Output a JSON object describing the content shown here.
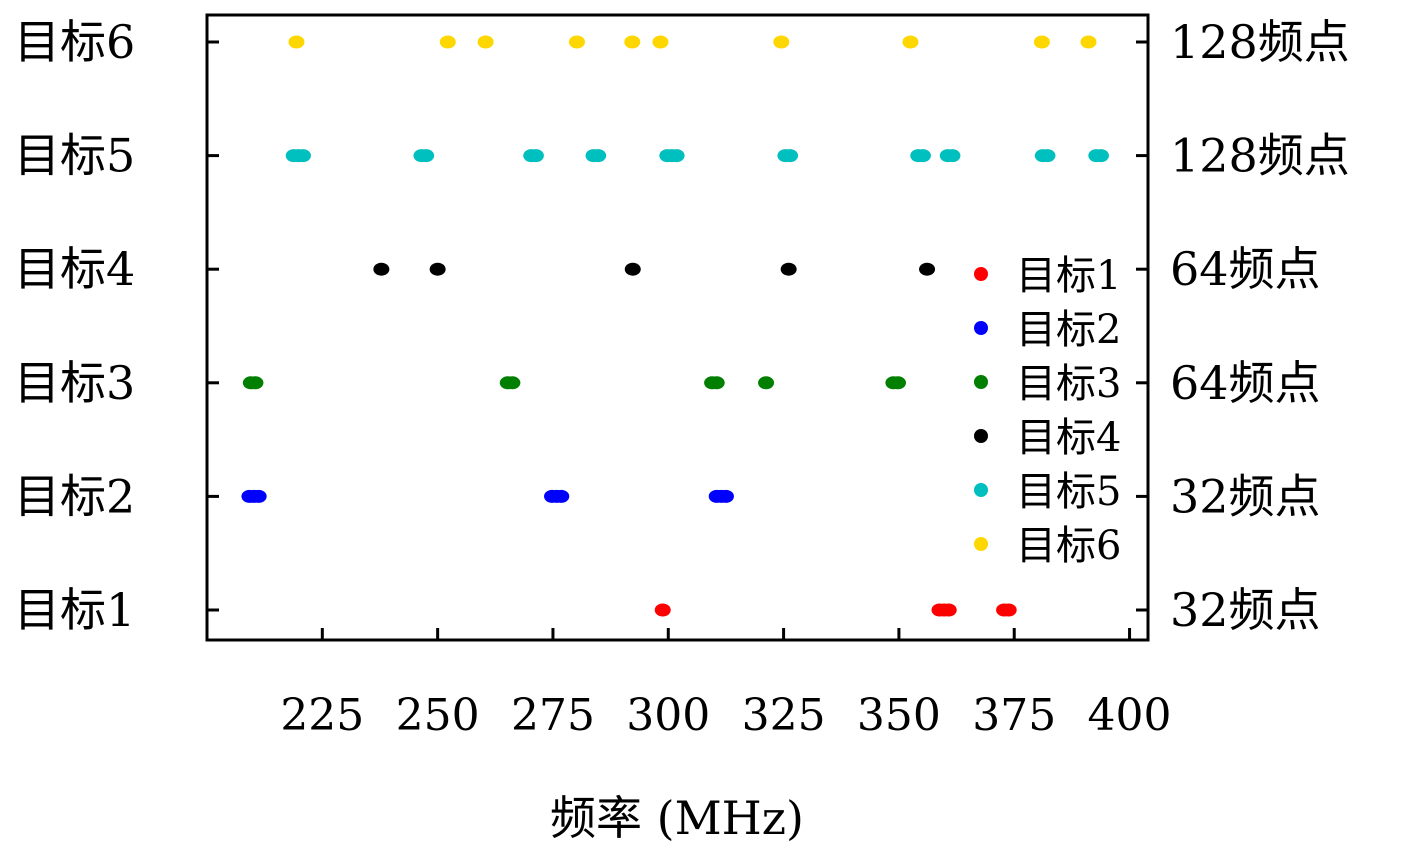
{
  "chart_data": {
    "type": "scatter",
    "xlabel": "频率 (MHz)",
    "ylabel": "",
    "xlim": [
      200,
      404
    ],
    "x_ticks": [
      "225",
      "250",
      "275",
      "300",
      "325",
      "350",
      "375",
      "400"
    ],
    "y_categories": [
      "目标1",
      "目标2",
      "目标3",
      "目标4",
      "目标5",
      "目标6"
    ],
    "right_labels": [
      "32频点",
      "32频点",
      "64频点",
      "64频点",
      "128频点",
      "128频点"
    ],
    "grid": false,
    "legend": "right-inside",
    "series": [
      {
        "name": "目标1",
        "color": "#ff0000",
        "y": 1,
        "x": [
          298.8,
          358.8,
          359.8,
          360.8,
          372.8,
          373.8
        ]
      },
      {
        "name": "目标2",
        "color": "#0000ff",
        "y": 2,
        "x": [
          209.2,
          210.2,
          211.2,
          274.8,
          275.8,
          276.8,
          310.5,
          311.5,
          312.5
        ]
      },
      {
        "name": "目标3",
        "color": "#007f00",
        "y": 3,
        "x": [
          209.5,
          210.5,
          265.2,
          266.2,
          309.5,
          310.5,
          321.2,
          348.8,
          349.8
        ]
      },
      {
        "name": "目标4",
        "color": "#000000",
        "y": 4,
        "x": [
          237.8,
          250.0,
          292.3,
          326.1,
          356.1
        ]
      },
      {
        "name": "目标5",
        "color": "#00bfbf",
        "y": 5,
        "x": [
          218.8,
          219.8,
          220.8,
          246.5,
          247.5,
          270.3,
          271.3,
          283.8,
          284.8,
          299.8,
          300.8,
          301.8,
          325.4,
          326.4,
          354.2,
          355.2,
          360.6,
          361.6,
          381.2,
          382.2,
          392.8,
          393.8
        ]
      },
      {
        "name": "目标6",
        "color": "#ffd700",
        "y": 6,
        "x": [
          219.4,
          252.2,
          260.4,
          280.2,
          292.2,
          298.3,
          324.5,
          352.5,
          381.0,
          391.1
        ]
      }
    ]
  }
}
